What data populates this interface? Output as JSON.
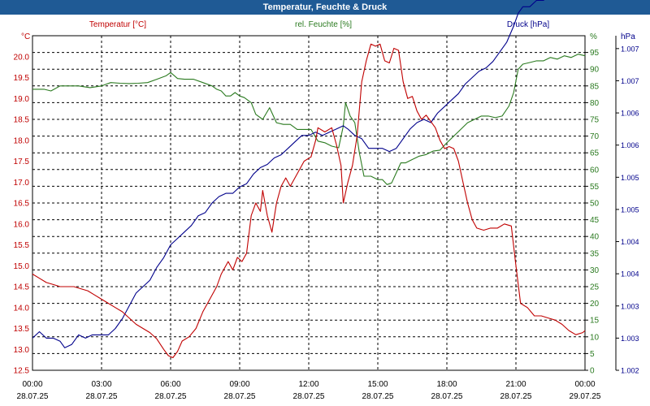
{
  "header": {
    "title": "Temperatur, Feuchte & Druck"
  },
  "colors": {
    "header_bg": "#1f5a95",
    "temperature": "#c00000",
    "humidity": "#2a7a1f",
    "pressure": "#00008b",
    "grid": "#000000"
  },
  "chart_data": {
    "type": "line",
    "title": "Temperatur, Feuchte & Druck",
    "grid": true,
    "x_ticks": [
      {
        "time": "00:00",
        "date": "28.07.25"
      },
      {
        "time": "03:00",
        "date": "28.07.25"
      },
      {
        "time": "06:00",
        "date": "28.07.25"
      },
      {
        "time": "09:00",
        "date": "28.07.25"
      },
      {
        "time": "12:00",
        "date": "28.07.25"
      },
      {
        "time": "15:00",
        "date": "28.07.25"
      },
      {
        "time": "18:00",
        "date": "28.07.25"
      },
      {
        "time": "21:00",
        "date": "28.07.25"
      },
      {
        "time": "00:00",
        "date": "29.07.25"
      }
    ],
    "x_unit": "hours from 28.07.25 00:00",
    "axes": {
      "temperature": {
        "unit_label": "°C",
        "series_label": "Temperatur [°C]",
        "ylim": [
          12.5,
          20.5
        ],
        "ticks": [
          "12.5",
          "13.0",
          "13.5",
          "14.0",
          "14.5",
          "15.0",
          "15.5",
          "16.0",
          "16.5",
          "17.0",
          "17.5",
          "18.0",
          "18.5",
          "19.0",
          "19.5",
          "20.0"
        ]
      },
      "humidity": {
        "unit_label": "%",
        "series_label": "rel. Feuchte [%]",
        "ylim": [
          0,
          100
        ],
        "ticks": [
          "0",
          "5",
          "10",
          "15",
          "20",
          "25",
          "30",
          "35",
          "40",
          "45",
          "50",
          "55",
          "60",
          "65",
          "70",
          "75",
          "80",
          "85",
          "90",
          "95"
        ]
      },
      "pressure": {
        "unit_label": "hPa",
        "series_label": "Druck [hPa]",
        "ylim": [
          1002.0,
          1007.2
        ],
        "ticks": [
          "1.002",
          "1.003",
          "1.003",
          "1.004",
          "1.004",
          "1.005",
          "1.005",
          "1.006",
          "1.006",
          "1.007",
          "1.007"
        ],
        "tick_values": [
          1002.0,
          1002.5,
          1003.0,
          1003.5,
          1004.0,
          1004.5,
          1005.0,
          1005.5,
          1006.0,
          1006.5,
          1007.0
        ]
      }
    },
    "series": [
      {
        "name": "Temperatur [°C]",
        "axis": "temperature",
        "points": [
          [
            0,
            14.8
          ],
          [
            0.3,
            14.7
          ],
          [
            0.6,
            14.6
          ],
          [
            0.9,
            14.55
          ],
          [
            1.2,
            14.5
          ],
          [
            1.5,
            14.5
          ],
          [
            1.8,
            14.5
          ],
          [
            2.1,
            14.45
          ],
          [
            2.4,
            14.4
          ],
          [
            2.7,
            14.3
          ],
          [
            3.0,
            14.2
          ],
          [
            3.3,
            14.1
          ],
          [
            3.6,
            14.0
          ],
          [
            3.9,
            13.9
          ],
          [
            4.2,
            13.75
          ],
          [
            4.5,
            13.6
          ],
          [
            4.8,
            13.5
          ],
          [
            5.1,
            13.4
          ],
          [
            5.4,
            13.25
          ],
          [
            5.7,
            13.0
          ],
          [
            5.9,
            12.85
          ],
          [
            6.1,
            12.8
          ],
          [
            6.3,
            12.95
          ],
          [
            6.5,
            13.2
          ],
          [
            6.8,
            13.3
          ],
          [
            7.1,
            13.5
          ],
          [
            7.4,
            13.9
          ],
          [
            7.7,
            14.2
          ],
          [
            8.0,
            14.5
          ],
          [
            8.2,
            14.8
          ],
          [
            8.5,
            15.1
          ],
          [
            8.7,
            14.9
          ],
          [
            8.9,
            15.2
          ],
          [
            9.1,
            15.1
          ],
          [
            9.3,
            15.3
          ],
          [
            9.5,
            16.2
          ],
          [
            9.7,
            16.5
          ],
          [
            9.9,
            16.3
          ],
          [
            10.0,
            16.8
          ],
          [
            10.2,
            16.2
          ],
          [
            10.4,
            15.8
          ],
          [
            10.6,
            16.5
          ],
          [
            10.8,
            16.9
          ],
          [
            11.0,
            17.1
          ],
          [
            11.2,
            16.9
          ],
          [
            11.5,
            17.2
          ],
          [
            11.8,
            17.5
          ],
          [
            12.1,
            17.6
          ],
          [
            12.3,
            18.0
          ],
          [
            12.4,
            18.3
          ],
          [
            12.7,
            18.2
          ],
          [
            13.0,
            18.3
          ],
          [
            13.2,
            17.9
          ],
          [
            13.4,
            17.4
          ],
          [
            13.5,
            16.5
          ],
          [
            13.7,
            17.0
          ],
          [
            13.9,
            17.4
          ],
          [
            14.1,
            18.1
          ],
          [
            14.3,
            19.4
          ],
          [
            14.5,
            19.9
          ],
          [
            14.7,
            20.3
          ],
          [
            14.9,
            20.25
          ],
          [
            15.1,
            20.3
          ],
          [
            15.3,
            19.9
          ],
          [
            15.5,
            19.85
          ],
          [
            15.7,
            20.2
          ],
          [
            15.9,
            20.15
          ],
          [
            16.1,
            19.4
          ],
          [
            16.3,
            19.0
          ],
          [
            16.5,
            19.05
          ],
          [
            16.7,
            18.7
          ],
          [
            16.9,
            18.5
          ],
          [
            17.1,
            18.6
          ],
          [
            17.3,
            18.45
          ],
          [
            17.5,
            18.3
          ],
          [
            17.7,
            18.0
          ],
          [
            17.9,
            17.8
          ],
          [
            18.1,
            17.85
          ],
          [
            18.3,
            17.8
          ],
          [
            18.5,
            17.5
          ],
          [
            18.7,
            17.0
          ],
          [
            18.9,
            16.5
          ],
          [
            19.1,
            16.1
          ],
          [
            19.3,
            15.9
          ],
          [
            19.6,
            15.85
          ],
          [
            19.9,
            15.9
          ],
          [
            20.2,
            15.9
          ],
          [
            20.5,
            16.0
          ],
          [
            20.8,
            15.95
          ],
          [
            21.0,
            15.0
          ],
          [
            21.2,
            14.1
          ],
          [
            21.5,
            14.0
          ],
          [
            21.8,
            13.8
          ],
          [
            22.1,
            13.8
          ],
          [
            22.4,
            13.75
          ],
          [
            22.7,
            13.7
          ],
          [
            23.0,
            13.6
          ],
          [
            23.3,
            13.45
          ],
          [
            23.6,
            13.35
          ],
          [
            23.9,
            13.4
          ],
          [
            24.0,
            13.45
          ]
        ]
      },
      {
        "name": "rel. Feuchte [%]",
        "axis": "humidity",
        "points": [
          [
            0,
            84
          ],
          [
            0.5,
            84
          ],
          [
            0.8,
            83.5
          ],
          [
            1.2,
            85
          ],
          [
            1.6,
            85
          ],
          [
            2.0,
            85
          ],
          [
            2.5,
            84.5
          ],
          [
            3.0,
            85
          ],
          [
            3.4,
            86
          ],
          [
            3.8,
            85.8
          ],
          [
            4.2,
            85.7
          ],
          [
            4.6,
            85.8
          ],
          [
            5.0,
            86
          ],
          [
            5.4,
            87
          ],
          [
            5.8,
            88
          ],
          [
            6.0,
            89
          ],
          [
            6.3,
            87.2
          ],
          [
            6.6,
            87
          ],
          [
            7.0,
            87
          ],
          [
            7.4,
            86
          ],
          [
            7.8,
            85
          ],
          [
            8.0,
            84
          ],
          [
            8.2,
            83.5
          ],
          [
            8.4,
            82
          ],
          [
            8.6,
            82
          ],
          [
            8.8,
            83
          ],
          [
            9.0,
            82
          ],
          [
            9.2,
            81.5
          ],
          [
            9.5,
            80
          ],
          [
            9.7,
            76.5
          ],
          [
            10.0,
            75
          ],
          [
            10.3,
            78.5
          ],
          [
            10.6,
            74
          ],
          [
            10.9,
            73.5
          ],
          [
            11.2,
            73.5
          ],
          [
            11.5,
            72
          ],
          [
            11.8,
            72
          ],
          [
            12.1,
            72
          ],
          [
            12.4,
            68.5
          ],
          [
            12.7,
            68
          ],
          [
            13.0,
            67
          ],
          [
            13.3,
            66.5
          ],
          [
            13.5,
            73
          ],
          [
            13.6,
            80
          ],
          [
            13.8,
            76
          ],
          [
            14.0,
            74
          ],
          [
            14.2,
            65
          ],
          [
            14.4,
            58
          ],
          [
            14.7,
            58
          ],
          [
            15.0,
            57
          ],
          [
            15.2,
            57
          ],
          [
            15.4,
            55.5
          ],
          [
            15.6,
            56
          ],
          [
            15.8,
            59
          ],
          [
            16.0,
            62
          ],
          [
            16.2,
            62
          ],
          [
            16.5,
            63
          ],
          [
            16.8,
            64
          ],
          [
            17.1,
            64.5
          ],
          [
            17.4,
            65.5
          ],
          [
            17.7,
            65.8
          ],
          [
            18.0,
            68
          ],
          [
            18.3,
            70
          ],
          [
            18.6,
            72
          ],
          [
            18.9,
            74
          ],
          [
            19.2,
            75
          ],
          [
            19.5,
            76
          ],
          [
            19.8,
            76
          ],
          [
            20.1,
            75.5
          ],
          [
            20.4,
            76
          ],
          [
            20.7,
            79
          ],
          [
            20.9,
            83
          ],
          [
            21.1,
            90
          ],
          [
            21.3,
            91.5
          ],
          [
            21.6,
            92
          ],
          [
            21.9,
            92.5
          ],
          [
            22.2,
            92.5
          ],
          [
            22.5,
            93.5
          ],
          [
            22.8,
            93
          ],
          [
            23.1,
            94
          ],
          [
            23.4,
            93.5
          ],
          [
            23.7,
            94.5
          ],
          [
            24.0,
            94
          ]
        ]
      },
      {
        "name": "Druck [hPa]",
        "axis": "pressure",
        "points": [
          [
            0,
            1002.5
          ],
          [
            0.3,
            1002.6
          ],
          [
            0.6,
            1002.5
          ],
          [
            0.9,
            1002.5
          ],
          [
            1.2,
            1002.45
          ],
          [
            1.4,
            1002.35
          ],
          [
            1.7,
            1002.4
          ],
          [
            2.0,
            1002.55
          ],
          [
            2.3,
            1002.5
          ],
          [
            2.6,
            1002.55
          ],
          [
            3.0,
            1002.55
          ],
          [
            3.3,
            1002.55
          ],
          [
            3.6,
            1002.65
          ],
          [
            3.9,
            1002.8
          ],
          [
            4.2,
            1003.0
          ],
          [
            4.5,
            1003.2
          ],
          [
            4.8,
            1003.3
          ],
          [
            5.1,
            1003.4
          ],
          [
            5.4,
            1003.6
          ],
          [
            5.7,
            1003.75
          ],
          [
            6.0,
            1003.95
          ],
          [
            6.3,
            1004.05
          ],
          [
            6.6,
            1004.15
          ],
          [
            6.9,
            1004.25
          ],
          [
            7.2,
            1004.4
          ],
          [
            7.5,
            1004.45
          ],
          [
            7.8,
            1004.6
          ],
          [
            8.1,
            1004.7
          ],
          [
            8.4,
            1004.75
          ],
          [
            8.7,
            1004.75
          ],
          [
            9.0,
            1004.85
          ],
          [
            9.3,
            1004.9
          ],
          [
            9.6,
            1005.05
          ],
          [
            9.9,
            1005.15
          ],
          [
            10.2,
            1005.2
          ],
          [
            10.5,
            1005.3
          ],
          [
            10.8,
            1005.35
          ],
          [
            11.1,
            1005.45
          ],
          [
            11.4,
            1005.55
          ],
          [
            11.7,
            1005.65
          ],
          [
            12.0,
            1005.65
          ],
          [
            12.3,
            1005.7
          ],
          [
            12.6,
            1005.65
          ],
          [
            12.9,
            1005.7
          ],
          [
            13.2,
            1005.75
          ],
          [
            13.5,
            1005.8
          ],
          [
            13.7,
            1005.75
          ],
          [
            14.0,
            1005.65
          ],
          [
            14.3,
            1005.6
          ],
          [
            14.6,
            1005.45
          ],
          [
            14.9,
            1005.45
          ],
          [
            15.2,
            1005.45
          ],
          [
            15.5,
            1005.4
          ],
          [
            15.8,
            1005.45
          ],
          [
            16.1,
            1005.6
          ],
          [
            16.4,
            1005.75
          ],
          [
            16.7,
            1005.85
          ],
          [
            17.0,
            1005.9
          ],
          [
            17.3,
            1005.85
          ],
          [
            17.6,
            1006.0
          ],
          [
            17.9,
            1006.1
          ],
          [
            18.2,
            1006.2
          ],
          [
            18.5,
            1006.3
          ],
          [
            18.8,
            1006.45
          ],
          [
            19.1,
            1006.55
          ],
          [
            19.4,
            1006.65
          ],
          [
            19.7,
            1006.7
          ],
          [
            20.0,
            1006.8
          ],
          [
            20.3,
            1006.95
          ],
          [
            20.6,
            1007.1
          ],
          [
            20.9,
            1007.35
          ],
          [
            21.1,
            1007.55
          ],
          [
            21.3,
            1007.65
          ],
          [
            21.6,
            1007.65
          ],
          [
            21.9,
            1007.75
          ],
          [
            22.2,
            1007.75
          ],
          [
            22.5,
            1007.85
          ],
          [
            22.8,
            1007.85
          ],
          [
            23.1,
            1007.9
          ],
          [
            23.4,
            1007.9
          ],
          [
            23.7,
            1007.95
          ],
          [
            24.0,
            1007.9
          ]
        ]
      }
    ]
  }
}
